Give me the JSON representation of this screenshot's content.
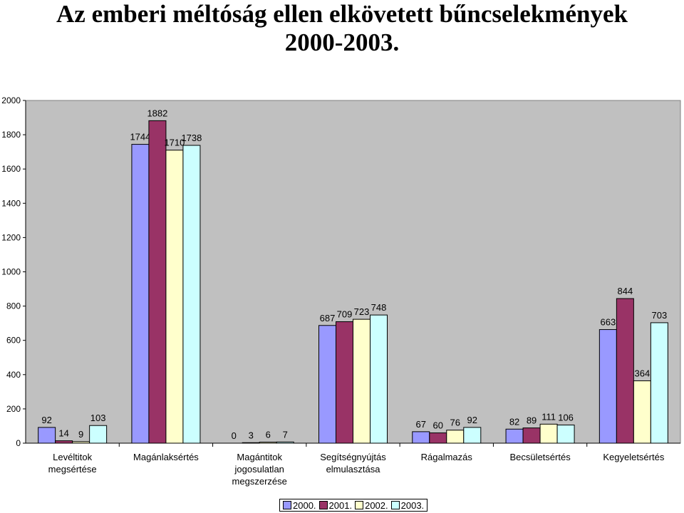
{
  "title_line1": "Az emberi méltóság ellen elkövetett bűncselekmények",
  "title_line2": "2000-2003.",
  "chart_data": {
    "type": "bar",
    "categories": [
      [
        "Levéltitok",
        "megsértése"
      ],
      [
        "Magánlaksértés"
      ],
      [
        "Magántitok",
        "jogosulatlan",
        "megszerzése"
      ],
      [
        "Segítségnyújtás",
        "elmulasztása"
      ],
      [
        "Rágalmazás"
      ],
      [
        "Becsületsértés"
      ],
      [
        "Kegyeletsértés"
      ]
    ],
    "series": [
      {
        "name": "2000.",
        "color": "#9999ff",
        "values": [
          92,
          1744,
          0,
          687,
          67,
          82,
          663
        ]
      },
      {
        "name": "2001.",
        "color": "#993366",
        "values": [
          14,
          1882,
          3,
          709,
          60,
          89,
          844
        ]
      },
      {
        "name": "2002.",
        "color": "#ffffcc",
        "values": [
          9,
          1710,
          6,
          723,
          76,
          111,
          364
        ]
      },
      {
        "name": "2003.",
        "color": "#ccffff",
        "values": [
          103,
          1738,
          7,
          748,
          92,
          106,
          703
        ]
      }
    ],
    "ylim": [
      0,
      2000
    ],
    "yticks": [
      0,
      200,
      400,
      600,
      800,
      1000,
      1200,
      1400,
      1600,
      1800,
      2000
    ],
    "plot_background": "#c0c0c0",
    "grid": false,
    "legend_position": "bottom"
  }
}
